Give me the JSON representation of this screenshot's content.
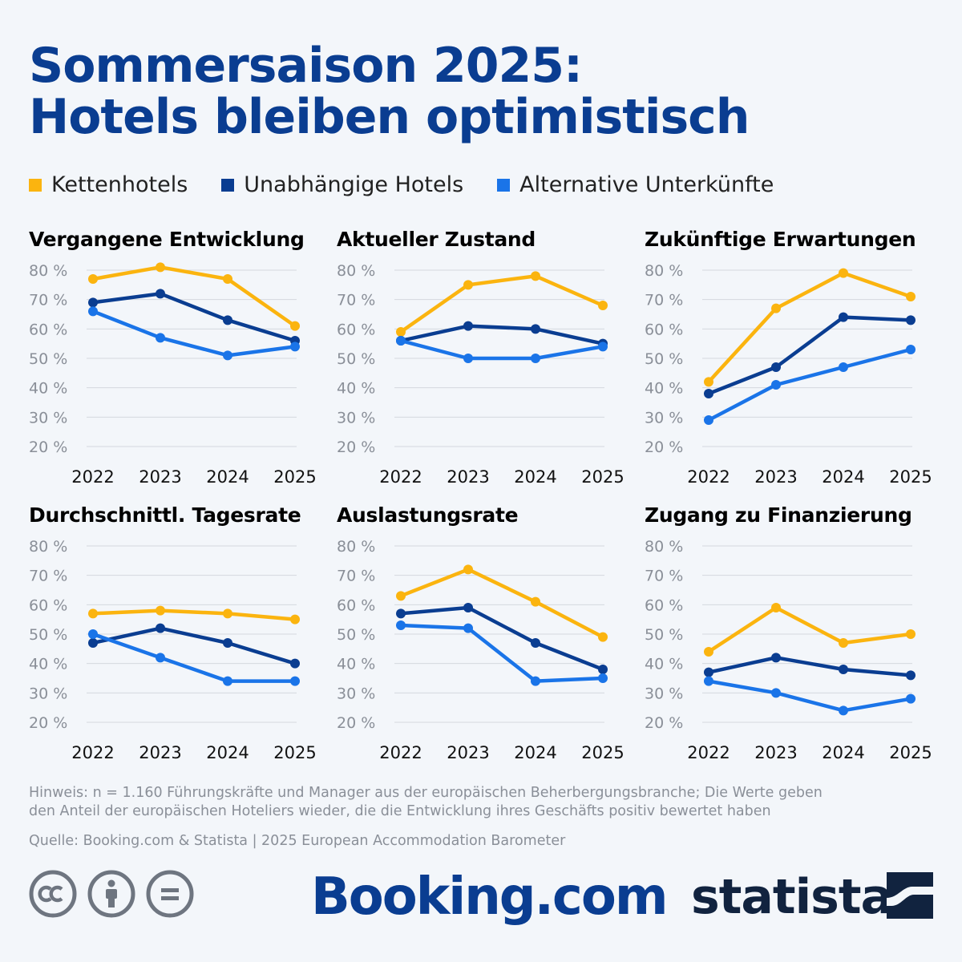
{
  "title": {
    "line1": "Sommersaison 2025:",
    "line2": "Hotels bleiben optimistisch"
  },
  "colors": {
    "Kettenhotels": "#fbb40f",
    "Unabhängige Hotels": "#0a3d91",
    "Alternative Unterkünfte": "#1a74e8",
    "title": "#0a3d91",
    "grid": "#d4d8de",
    "muted": "#8a8f98"
  },
  "legend": [
    {
      "label": "Kettenhotels",
      "color": "#fbb40f"
    },
    {
      "label": "Unabhängige Hotels",
      "color": "#0a3d91"
    },
    {
      "label": "Alternative Unterkünfte",
      "color": "#1a74e8"
    }
  ],
  "chart_data": [
    {
      "type": "line",
      "title": "Vergangene Entwicklung",
      "x": [
        "2022",
        "2023",
        "2024",
        "2025"
      ],
      "yticks": [
        "80 %",
        "70 %",
        "60 %",
        "50 %",
        "40 %",
        "30 %",
        "20 %"
      ],
      "ylim": [
        20,
        80
      ],
      "series": [
        {
          "name": "Kettenhotels",
          "values": [
            77,
            81,
            77,
            61
          ]
        },
        {
          "name": "Unabhängige Hotels",
          "values": [
            69,
            72,
            63,
            56
          ]
        },
        {
          "name": "Alternative Unterkünfte",
          "values": [
            66,
            57,
            51,
            54
          ]
        }
      ]
    },
    {
      "type": "line",
      "title": "Aktueller Zustand",
      "x": [
        "2022",
        "2023",
        "2024",
        "2025"
      ],
      "yticks": [
        "80 %",
        "70 %",
        "60 %",
        "50 %",
        "40 %",
        "30 %",
        "20 %"
      ],
      "ylim": [
        20,
        80
      ],
      "series": [
        {
          "name": "Kettenhotels",
          "values": [
            59,
            75,
            78,
            68
          ]
        },
        {
          "name": "Unabhängige Hotels",
          "values": [
            56,
            61,
            60,
            55
          ]
        },
        {
          "name": "Alternative Unterkünfte",
          "values": [
            56,
            50,
            50,
            54
          ]
        }
      ]
    },
    {
      "type": "line",
      "title": "Zukünftige Erwartungen",
      "x": [
        "2022",
        "2023",
        "2024",
        "2025"
      ],
      "yticks": [
        "80 %",
        "70 %",
        "60 %",
        "50 %",
        "40 %",
        "30 %",
        "20 %"
      ],
      "ylim": [
        20,
        80
      ],
      "series": [
        {
          "name": "Kettenhotels",
          "values": [
            42,
            67,
            79,
            71
          ]
        },
        {
          "name": "Unabhängige Hotels",
          "values": [
            38,
            47,
            64,
            63
          ]
        },
        {
          "name": "Alternative Unterkünfte",
          "values": [
            29,
            41,
            47,
            53
          ]
        }
      ]
    },
    {
      "type": "line",
      "title": "Durchschnittl. Tagesrate",
      "x": [
        "2022",
        "2023",
        "2024",
        "2025"
      ],
      "yticks": [
        "80 %",
        "70 %",
        "60 %",
        "50 %",
        "40 %",
        "30 %",
        "20 %"
      ],
      "ylim": [
        20,
        80
      ],
      "series": [
        {
          "name": "Kettenhotels",
          "values": [
            57,
            58,
            57,
            55
          ]
        },
        {
          "name": "Unabhängige Hotels",
          "values": [
            47,
            52,
            47,
            40
          ]
        },
        {
          "name": "Alternative Unterkünfte",
          "values": [
            50,
            42,
            34,
            34
          ]
        }
      ]
    },
    {
      "type": "line",
      "title": "Auslastungsrate",
      "x": [
        "2022",
        "2023",
        "2024",
        "2025"
      ],
      "yticks": [
        "80 %",
        "70 %",
        "60 %",
        "50 %",
        "40 %",
        "30 %",
        "20 %"
      ],
      "ylim": [
        20,
        80
      ],
      "series": [
        {
          "name": "Kettenhotels",
          "values": [
            63,
            72,
            61,
            49
          ]
        },
        {
          "name": "Unabhängige Hotels",
          "values": [
            57,
            59,
            47,
            38
          ]
        },
        {
          "name": "Alternative Unterkünfte",
          "values": [
            53,
            52,
            34,
            35
          ]
        }
      ]
    },
    {
      "type": "line",
      "title": "Zugang zu Finanzierung",
      "x": [
        "2022",
        "2023",
        "2024",
        "2025"
      ],
      "yticks": [
        "80 %",
        "70 %",
        "60 %",
        "50 %",
        "40 %",
        "30 %",
        "20 %"
      ],
      "ylim": [
        20,
        80
      ],
      "series": [
        {
          "name": "Kettenhotels",
          "values": [
            44,
            59,
            47,
            50
          ]
        },
        {
          "name": "Unabhängige Hotels",
          "values": [
            37,
            42,
            38,
            36
          ]
        },
        {
          "name": "Alternative Unterkünfte",
          "values": [
            34,
            30,
            24,
            28
          ]
        }
      ]
    }
  ],
  "note": {
    "line1": "Hinweis: n = 1.160 Führungskräfte und Manager aus der europäischen Beherbergungsbranche; Die Werte geben",
    "line2": "den Anteil der europäischen Hoteliers wieder, die die Entwicklung ihres Geschäfts positiv bewertet haben"
  },
  "source": "Quelle: Booking.com & Statista | 2025 European Accommodation Barometer",
  "logos": {
    "booking": "Booking.com",
    "statista": "statista",
    "license_icons": [
      "cc-icon",
      "attribution-icon",
      "no-derivatives-icon"
    ]
  }
}
